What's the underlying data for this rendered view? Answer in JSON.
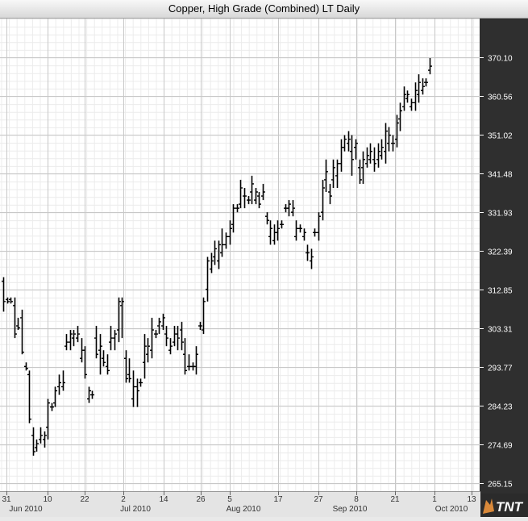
{
  "title": "Copper, High Grade (Combined) LT Daily",
  "logo": {
    "text": "TNT",
    "icon": "lion-logo-icon"
  },
  "colors": {
    "plot_bg": "#ffffff",
    "grid": "#d9d9d9",
    "bars": "#000000",
    "axis_bg": "#2f2f2f",
    "axis_text": "#ffffff",
    "xaxis_bg": "#e4e4e4"
  },
  "chart_data": {
    "type": "ohlc",
    "title": "Copper, High Grade (Combined) LT Daily",
    "ylim": [
      261.5,
      379.5
    ],
    "y_ticks": [
      "265.15",
      "274.69",
      "284.23",
      "293.77",
      "303.31",
      "312.85",
      "322.39",
      "331.93",
      "341.48",
      "351.02",
      "360.56",
      "370.10"
    ],
    "y_axis_side": "right",
    "grid": true,
    "x_tick_labels": [
      "31",
      "10",
      "22",
      "2",
      "14",
      "26",
      "5",
      "17",
      "27",
      "8",
      "21",
      "1",
      "13"
    ],
    "month_labels": [
      "Jun 2010",
      "Jul 2010",
      "Aug 2010",
      "Sep 2010",
      "Oct 2010"
    ],
    "bars": [
      [
        1,
        316,
        307.5,
        315,
        310
      ],
      [
        2,
        311,
        309.5,
        310.5,
        310
      ],
      [
        3,
        311,
        309.5,
        310.5,
        310
      ],
      [
        4,
        311,
        301,
        309,
        302
      ],
      [
        5,
        306,
        303,
        304,
        303.5
      ],
      [
        6,
        308,
        297,
        306,
        297.5
      ],
      [
        7,
        295,
        293,
        294,
        293.5
      ],
      [
        8,
        293,
        280,
        292,
        281
      ],
      [
        9,
        279,
        272,
        277,
        273
      ],
      [
        10,
        276,
        273,
        274,
        275
      ],
      [
        11,
        279,
        275,
        276,
        277
      ],
      [
        12,
        278,
        274,
        276,
        277
      ],
      [
        13,
        286,
        276,
        279,
        285
      ],
      [
        14,
        285,
        283,
        284,
        284
      ],
      [
        15,
        289,
        284,
        285,
        288
      ],
      [
        16,
        292,
        287,
        289,
        290
      ],
      [
        17,
        293,
        288,
        289,
        290
      ],
      [
        18,
        302,
        298,
        299,
        300
      ],
      [
        19,
        303,
        298,
        300,
        302
      ],
      [
        20,
        303,
        299,
        301,
        302
      ],
      [
        21,
        304,
        300,
        301,
        302
      ],
      [
        22,
        301,
        295,
        296,
        298
      ],
      [
        23,
        299,
        291,
        298,
        292
      ],
      [
        24,
        289,
        285,
        286,
        288
      ],
      [
        25,
        288,
        286,
        287,
        287
      ],
      [
        26,
        304,
        296,
        301,
        297
      ],
      [
        27,
        302,
        292,
        298,
        299
      ],
      [
        28,
        298,
        294,
        296,
        295
      ],
      [
        29,
        297,
        292,
        294,
        293
      ],
      [
        30,
        304,
        298,
        300,
        301
      ],
      [
        31,
        303,
        298,
        301,
        302
      ],
      [
        32,
        311,
        300,
        303,
        310
      ],
      [
        33,
        311,
        301,
        309,
        310
      ],
      [
        34,
        298,
        290,
        296,
        291
      ],
      [
        35,
        296,
        290,
        292,
        291
      ],
      [
        36,
        293,
        284,
        286,
        289
      ],
      [
        37,
        291,
        284,
        289,
        288
      ],
      [
        38,
        291,
        289,
        290,
        290
      ],
      [
        39,
        302,
        291,
        295,
        299
      ],
      [
        40,
        301,
        295,
        297,
        299
      ],
      [
        41,
        306,
        296,
        298,
        303
      ],
      [
        42,
        303,
        301,
        302,
        302
      ],
      [
        43,
        306,
        302,
        304,
        305
      ],
      [
        44,
        307,
        303,
        304,
        306
      ],
      [
        45,
        304,
        299,
        302,
        301
      ],
      [
        46,
        301,
        297,
        298,
        299
      ],
      [
        47,
        304,
        299,
        300,
        302
      ],
      [
        48,
        304,
        298,
        302,
        301
      ],
      [
        49,
        305,
        298,
        303,
        300
      ],
      [
        50,
        301,
        292,
        297,
        293
      ],
      [
        51,
        297,
        293,
        294,
        294
      ],
      [
        52,
        295,
        293,
        294,
        294
      ],
      [
        53,
        299,
        292,
        294,
        297
      ],
      [
        54,
        305,
        303,
        304,
        304
      ],
      [
        55,
        311,
        302,
        303,
        310
      ],
      [
        56,
        321,
        310,
        313,
        320
      ],
      [
        57,
        322,
        317,
        318,
        320
      ],
      [
        58,
        325,
        319,
        321,
        323
      ],
      [
        59,
        325,
        318,
        320,
        324
      ],
      [
        60,
        328,
        321,
        322,
        324
      ],
      [
        61,
        327,
        323,
        324,
        326
      ],
      [
        62,
        330,
        324,
        326,
        328
      ],
      [
        63,
        334,
        327,
        329,
        333
      ],
      [
        64,
        334,
        332,
        333,
        333
      ],
      [
        65,
        340,
        333,
        334,
        338
      ],
      [
        66,
        338,
        333,
        336,
        336
      ],
      [
        67,
        336,
        334,
        335,
        335
      ],
      [
        68,
        341,
        334,
        337,
        339
      ],
      [
        69,
        338,
        334,
        335,
        337
      ],
      [
        70,
        337,
        333,
        336,
        334
      ],
      [
        71,
        339,
        335,
        336,
        337
      ],
      [
        72,
        332,
        329,
        331,
        330
      ],
      [
        73,
        330,
        324,
        326,
        328
      ],
      [
        74,
        329,
        324,
        325,
        327
      ],
      [
        75,
        330,
        325,
        327,
        328
      ],
      [
        76,
        330,
        328,
        329,
        329
      ],
      [
        77,
        334,
        332,
        333,
        333
      ],
      [
        78,
        335,
        331,
        333,
        334
      ],
      [
        79,
        335,
        331,
        332,
        333
      ],
      [
        80,
        330,
        325,
        326,
        328
      ],
      [
        81,
        329,
        327,
        328,
        328
      ],
      [
        82,
        328,
        325,
        326,
        327
      ],
      [
        83,
        324,
        320,
        322,
        322
      ],
      [
        84,
        323,
        318,
        320,
        321
      ],
      [
        85,
        328,
        326,
        327,
        327
      ],
      [
        86,
        332,
        325,
        327,
        331
      ],
      [
        87,
        340,
        330,
        332,
        338
      ],
      [
        88,
        345,
        337,
        340,
        342
      ],
      [
        89,
        339,
        334,
        337,
        336
      ],
      [
        90,
        345,
        338,
        340,
        343
      ],
      [
        91,
        345,
        338,
        341,
        344
      ],
      [
        92,
        350,
        342,
        344,
        348
      ],
      [
        93,
        351,
        347,
        348,
        350
      ],
      [
        94,
        352,
        347,
        349,
        350
      ],
      [
        95,
        351,
        341,
        347,
        345
      ],
      [
        96,
        350,
        345,
        348,
        349
      ],
      [
        97,
        345,
        339,
        343,
        340
      ],
      [
        98,
        347,
        339,
        343,
        345
      ],
      [
        99,
        348,
        343,
        344,
        346
      ],
      [
        100,
        349,
        344,
        345,
        347
      ],
      [
        101,
        348,
        342,
        345,
        344
      ],
      [
        102,
        349,
        343,
        345,
        347
      ],
      [
        103,
        350,
        345,
        346,
        348
      ],
      [
        104,
        354,
        344,
        347,
        352
      ],
      [
        105,
        353,
        347,
        349,
        351
      ],
      [
        106,
        351,
        347,
        349,
        349
      ],
      [
        107,
        356,
        348,
        350,
        354
      ],
      [
        108,
        359,
        352,
        355,
        357
      ],
      [
        109,
        363,
        357,
        358,
        361
      ],
      [
        110,
        362,
        359,
        360,
        361
      ],
      [
        111,
        360,
        357,
        358,
        359
      ],
      [
        112,
        364,
        357,
        359,
        362
      ],
      [
        113,
        366,
        359,
        361,
        364
      ],
      [
        114,
        365,
        361,
        362,
        363
      ],
      [
        115,
        365,
        363,
        364,
        364
      ],
      [
        116,
        370,
        366,
        367,
        368
      ]
    ]
  }
}
